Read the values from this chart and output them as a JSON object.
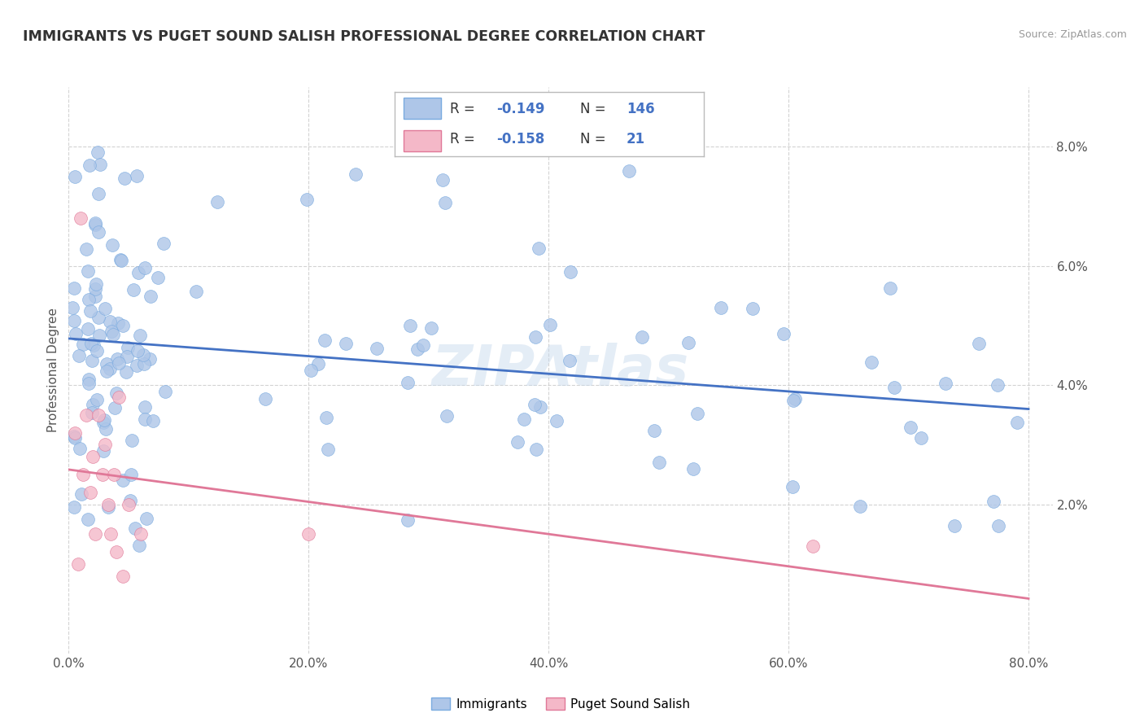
{
  "title": "IMMIGRANTS VS PUGET SOUND SALISH PROFESSIONAL DEGREE CORRELATION CHART",
  "source": "Source: ZipAtlas.com",
  "xlim": [
    0.0,
    0.82
  ],
  "ylim": [
    -0.005,
    0.09
  ],
  "ylabel": "Professional Degree",
  "immigrants_color": "#aec6e8",
  "immigrants_edge": "#7aabe0",
  "salish_color": "#f4b8c8",
  "salish_edge": "#e07898",
  "trend_immigrants_color": "#4472c4",
  "trend_salish_color": "#e07898",
  "r_immigrants": -0.149,
  "n_immigrants": 146,
  "r_salish": -0.158,
  "n_salish": 21,
  "background_color": "#ffffff",
  "grid_color": "#c8c8c8",
  "legend_immigrants": "Immigrants",
  "legend_salish": "Puget Sound Salish",
  "watermark": "ZIPAtlas",
  "title_color": "#333333",
  "source_color": "#999999",
  "ylabel_color": "#555555",
  "tick_color": "#555555",
  "legend_text_color": "#333333",
  "legend_num_color": "#4472c4"
}
